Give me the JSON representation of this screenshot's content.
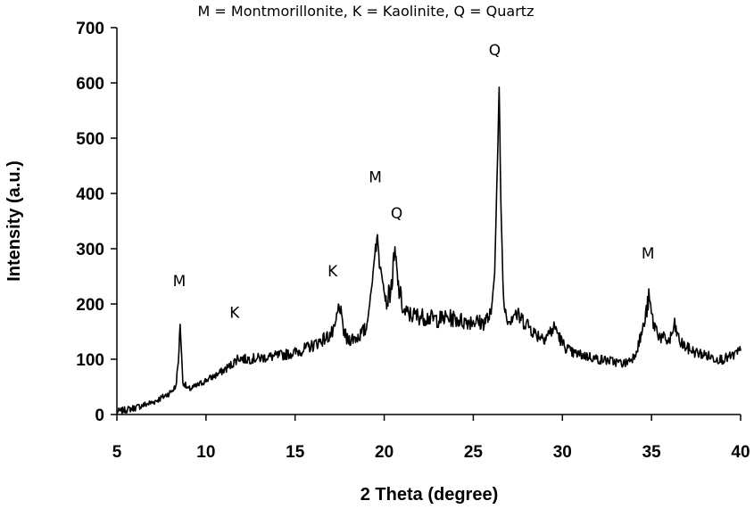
{
  "chart_data": {
    "type": "line",
    "title": "",
    "subtitle": "M = Montmorillonite, K = Kaolinite, Q = Quartz",
    "xlabel": "2 Theta (degree)",
    "ylabel": "Intensity (a.u.)",
    "xlim": [
      5,
      40
    ],
    "ylim": [
      0,
      700
    ],
    "x_ticks": [
      "5",
      "10",
      "15",
      "20",
      "25",
      "30",
      "35",
      "40"
    ],
    "y_ticks": [
      "0",
      "100",
      "200",
      "300",
      "400",
      "500",
      "600",
      "700"
    ],
    "grid": false,
    "line_color": "#000000",
    "series": [
      {
        "x": [
          5,
          6,
          7,
          7.5,
          8,
          8.3,
          8.45,
          8.55,
          8.7,
          9,
          9.5,
          10,
          10.5,
          11,
          11.5,
          11.8,
          12.2,
          13,
          14,
          15,
          15.5,
          16,
          16.5,
          16.8,
          17.2,
          17.4,
          17.5,
          17.65,
          17.9,
          18.5,
          19,
          19.3,
          19.55,
          19.8,
          20.1,
          20.4,
          20.6,
          20.8,
          21.1,
          21.5,
          22,
          22.5,
          23,
          23.5,
          24,
          24.5,
          25,
          25.5,
          26,
          26.2,
          26.35,
          26.45,
          26.55,
          26.7,
          27,
          27.3,
          27.6,
          28,
          28.5,
          29,
          29.6,
          30,
          30.5,
          31,
          31.5,
          32,
          32.5,
          33,
          33.5,
          34,
          34.3,
          34.6,
          34.85,
          35.1,
          35.5,
          36,
          36.3,
          36.6,
          37,
          37.5,
          38,
          38.5,
          39,
          39.5,
          40
        ],
        "y": [
          5,
          12,
          22,
          30,
          40,
          50,
          95,
          165,
          60,
          45,
          52,
          62,
          70,
          80,
          92,
          103,
          100,
          102,
          106,
          112,
          118,
          125,
          135,
          140,
          150,
          185,
          200,
          160,
          135,
          140,
          155,
          230,
          320,
          270,
          200,
          230,
          290,
          230,
          185,
          180,
          178,
          175,
          172,
          175,
          173,
          168,
          170,
          165,
          180,
          260,
          450,
          590,
          380,
          200,
          170,
          185,
          175,
          165,
          145,
          140,
          158,
          128,
          112,
          108,
          105,
          100,
          98,
          95,
          92,
          105,
          130,
          165,
          210,
          165,
          140,
          132,
          160,
          130,
          120,
          112,
          108,
          102,
          100,
          105,
          115
        ]
      }
    ],
    "annotations": [
      {
        "label": "M",
        "x": 8.5,
        "y": 232
      },
      {
        "label": "K",
        "x": 11.6,
        "y": 175
      },
      {
        "label": "K",
        "x": 17.1,
        "y": 250
      },
      {
        "label": "M",
        "x": 19.5,
        "y": 420
      },
      {
        "label": "Q",
        "x": 20.7,
        "y": 355
      },
      {
        "label": "Q",
        "x": 26.2,
        "y": 650
      },
      {
        "label": "M",
        "x": 34.8,
        "y": 282
      }
    ]
  }
}
